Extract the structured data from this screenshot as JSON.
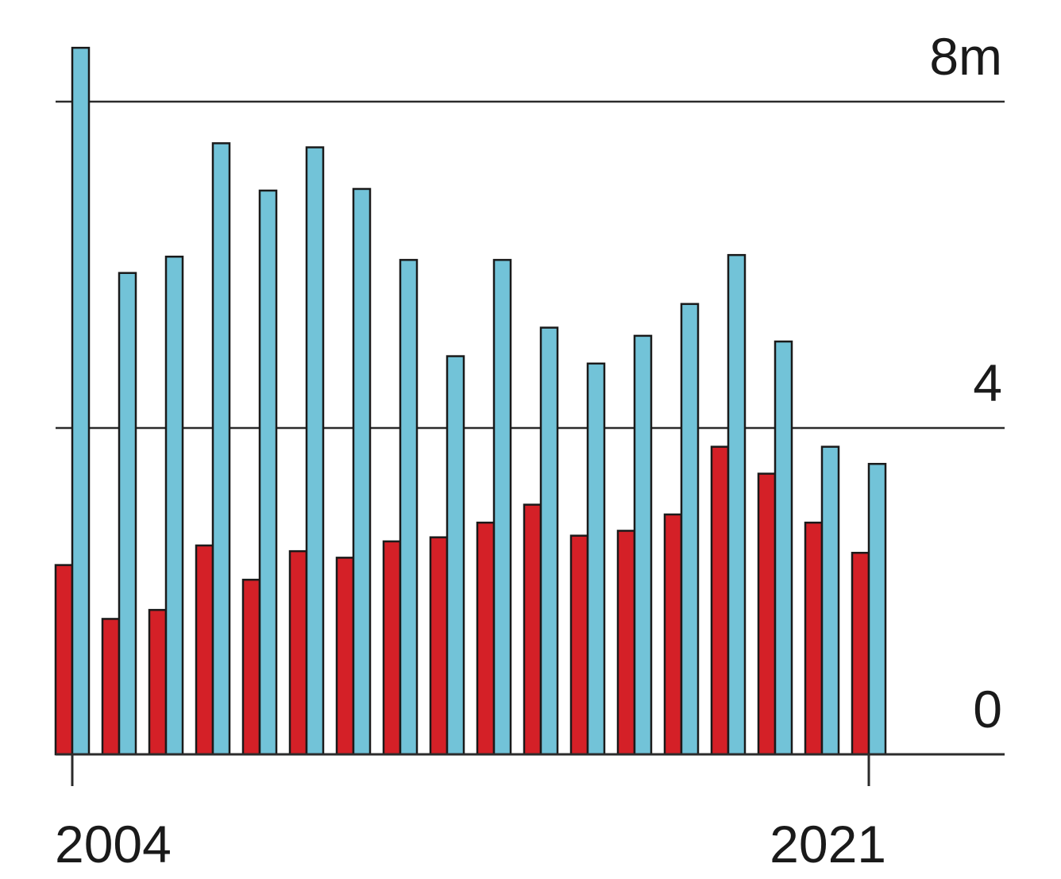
{
  "chart_data": {
    "type": "bar",
    "x": [
      2004,
      2005,
      2006,
      2007,
      2008,
      2009,
      2010,
      2011,
      2012,
      2013,
      2014,
      2015,
      2016,
      2017,
      2018,
      2019,
      2020,
      2021
    ],
    "series": [
      {
        "color": "#d42027",
        "values": [
          2.32,
          1.66,
          1.77,
          2.56,
          2.14,
          2.49,
          2.41,
          2.61,
          2.66,
          2.84,
          3.06,
          2.68,
          2.74,
          2.94,
          3.77,
          3.44,
          2.84,
          2.47
        ]
      },
      {
        "color": "#72c3d8",
        "values": [
          8.66,
          5.9,
          6.1,
          7.49,
          6.91,
          7.44,
          6.93,
          6.06,
          4.88,
          6.06,
          5.23,
          4.79,
          5.13,
          5.52,
          6.12,
          5.06,
          3.77,
          3.56
        ]
      }
    ],
    "y_ticks": [
      {
        "value": 8,
        "label": "8m"
      },
      {
        "value": 4,
        "label": "4"
      },
      {
        "value": 0,
        "label": "0"
      }
    ],
    "x_tick_labels": [
      {
        "value": 2004,
        "label": "2004"
      },
      {
        "value": 2021,
        "label": "2021"
      }
    ],
    "ylim": [
      0,
      8.7
    ],
    "grid": true,
    "legend": "none"
  }
}
